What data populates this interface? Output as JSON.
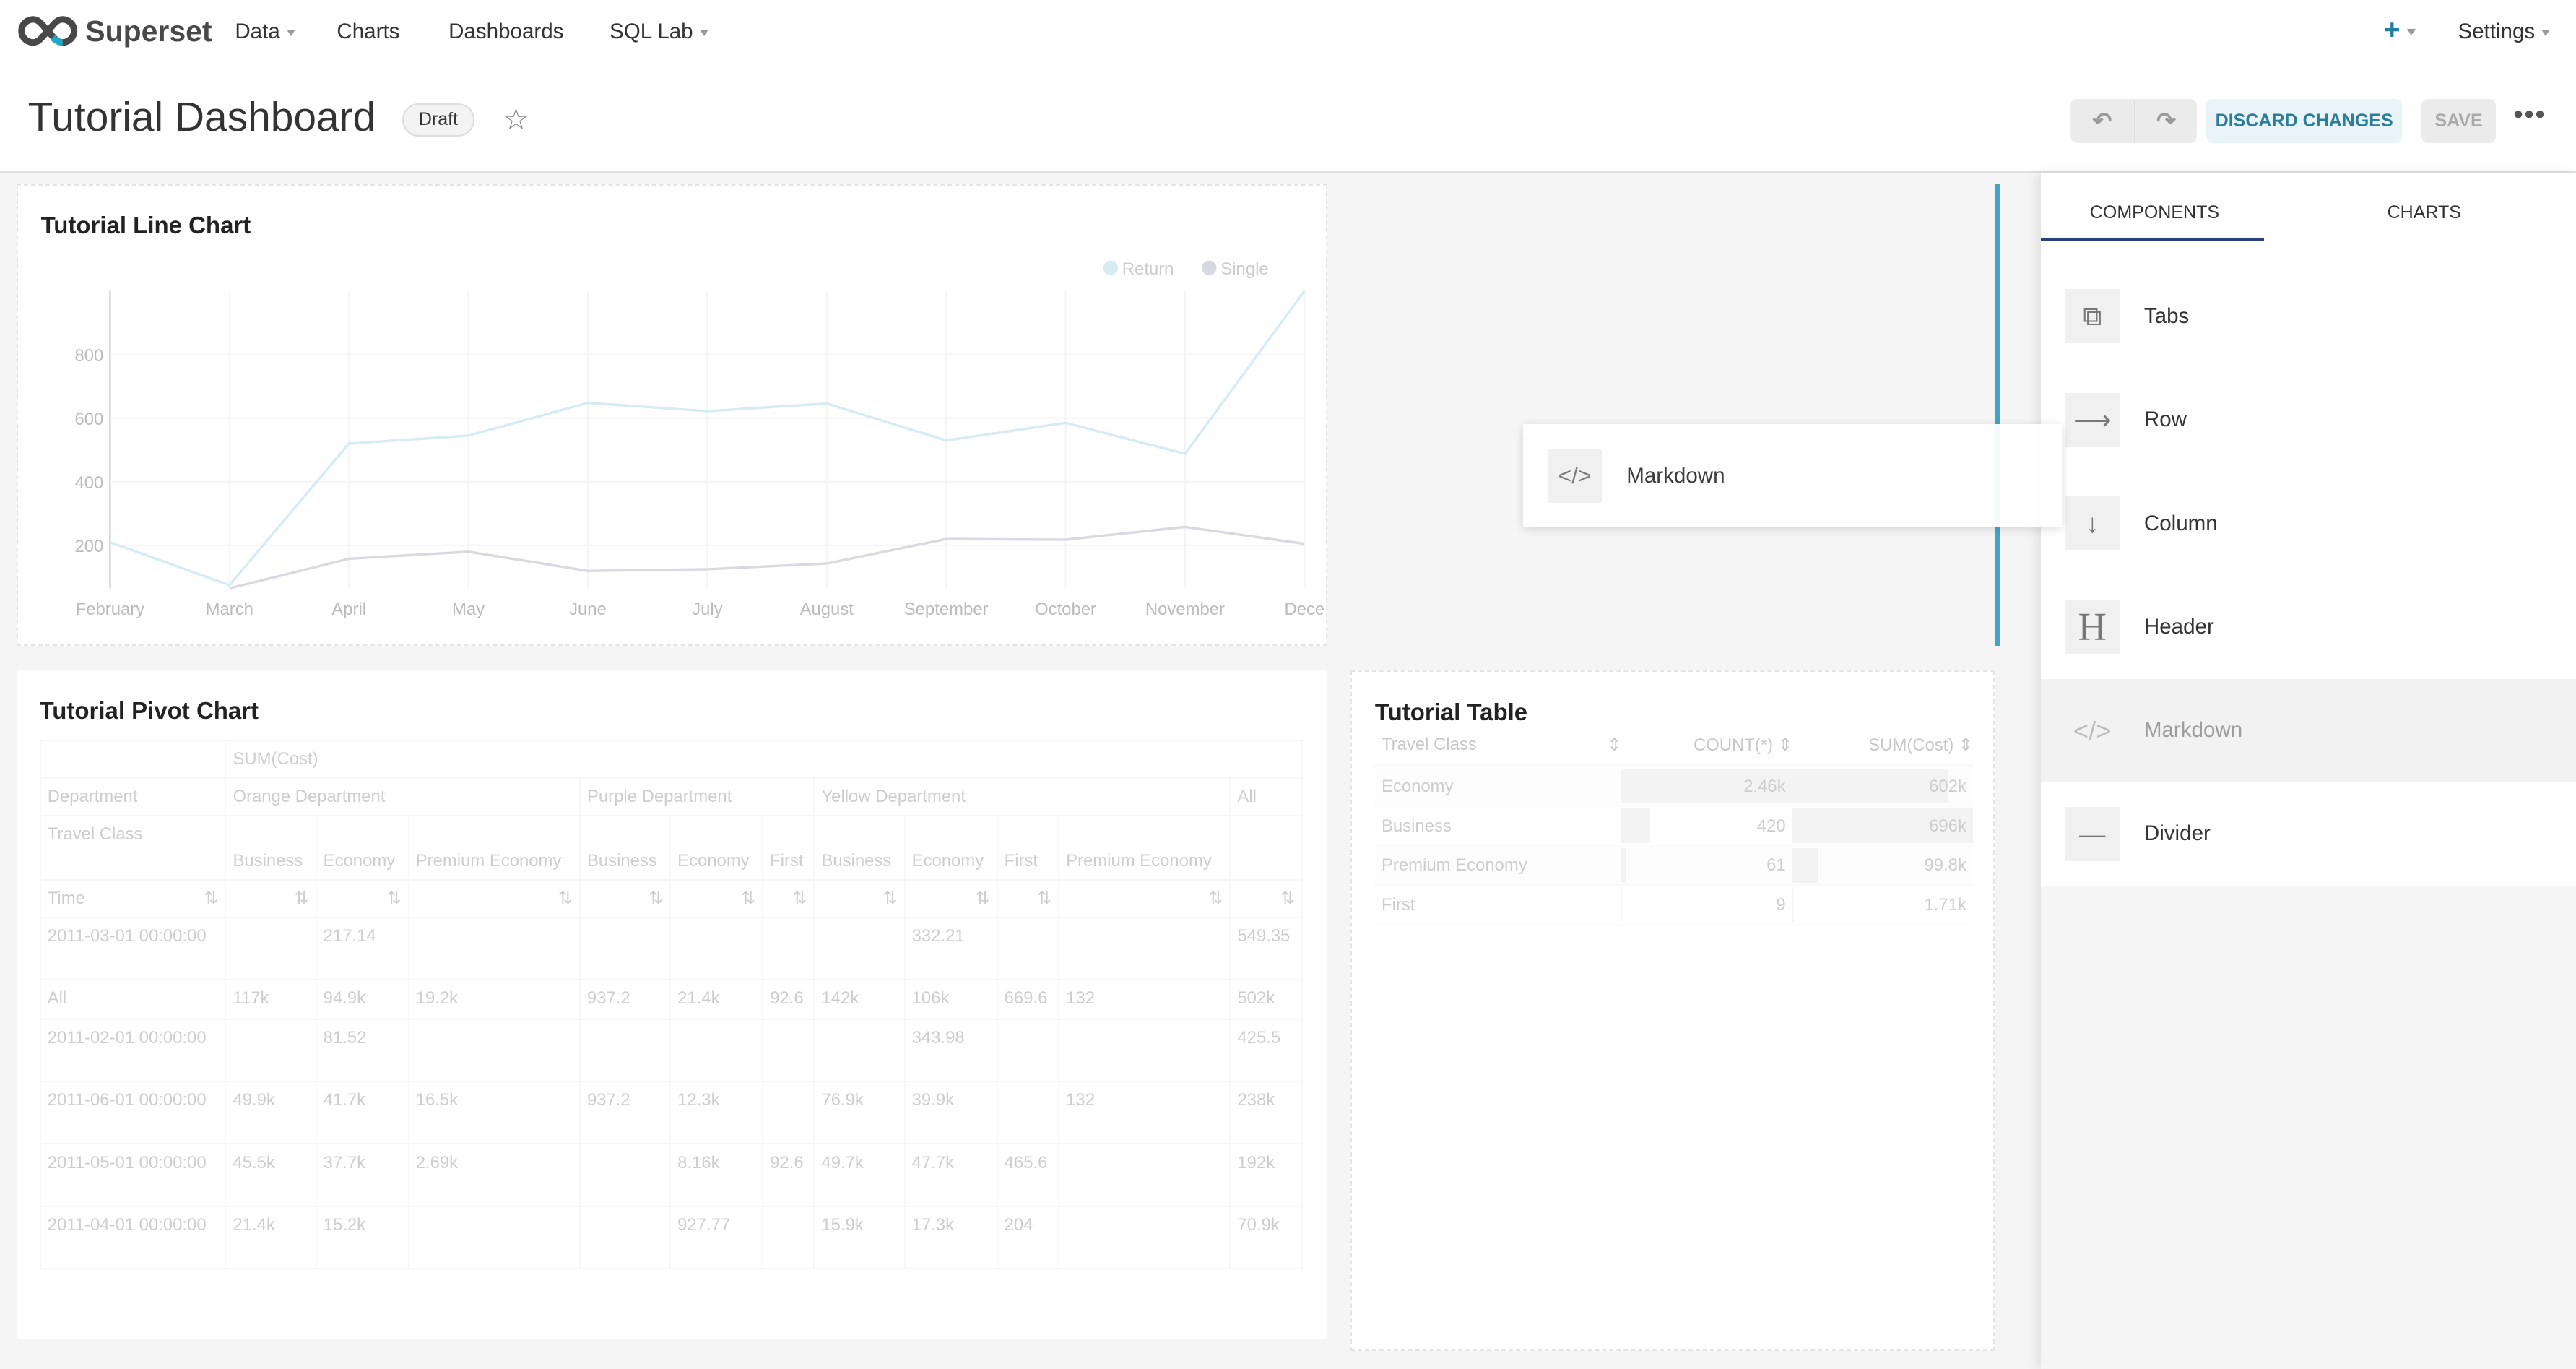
{
  "nav": {
    "brand": "Superset",
    "items": [
      {
        "label": "Data",
        "dropdown": true
      },
      {
        "label": "Charts"
      },
      {
        "label": "Dashboards"
      },
      {
        "label": "SQL Lab",
        "dropdown": true
      }
    ],
    "settings": "Settings",
    "accent": "#20a7c9"
  },
  "header": {
    "title": "Tutorial Dashboard",
    "badge": "Draft",
    "discard": "DISCARD CHANGES",
    "save": "SAVE"
  },
  "line_chart": {
    "title": "Tutorial Line Chart"
  },
  "chart_data": [
    {
      "type": "line",
      "title": "Tutorial Line Chart",
      "legend_position": "top-right",
      "grid": true,
      "categories": [
        "February",
        "March",
        "April",
        "May",
        "June",
        "July",
        "August",
        "September",
        "October",
        "November",
        "December"
      ],
      "x_tick_labels": [
        "February",
        "March",
        "April",
        "May",
        "June",
        "July",
        "August",
        "September",
        "October",
        "November",
        "Dece"
      ],
      "ylim": [
        65,
        1000
      ],
      "yticks": [
        "200",
        "400",
        "600",
        "800"
      ],
      "series": [
        {
          "name": "Return",
          "color": "#d6ebf2",
          "values": [
            210,
            75,
            520,
            545,
            648,
            622,
            646,
            530,
            585,
            488,
            1000
          ]
        },
        {
          "name": "Single",
          "color": "#d9dae1",
          "values": [
            null,
            65,
            158,
            180,
            120,
            125,
            143,
            220,
            218,
            258,
            205
          ]
        }
      ]
    }
  ],
  "pivot": {
    "title": "Tutorial Pivot Chart",
    "metric": "SUM(Cost)",
    "department_label": "Department",
    "departments": [
      {
        "name": "Orange Department",
        "span": 3
      },
      {
        "name": "Purple Department",
        "span": 3
      },
      {
        "name": "Yellow Department",
        "span": 4
      },
      {
        "name": "All",
        "span": 1
      }
    ],
    "class_label": "Travel Class",
    "classes": [
      "Business",
      "Economy",
      "Premium Economy",
      "Business",
      "Economy",
      "First",
      "Business",
      "Economy",
      "First",
      "Premium Economy",
      ""
    ],
    "time_label": "Time",
    "rows": [
      [
        "2011-03-01 00:00:00",
        "",
        "217.14",
        "",
        "",
        "",
        "",
        "",
        "332.21",
        "",
        "",
        "549.35"
      ],
      [
        "All",
        "117k",
        "94.9k",
        "19.2k",
        "937.2",
        "21.4k",
        "92.6",
        "142k",
        "106k",
        "669.6",
        "132",
        "502k"
      ],
      [
        "2011-02-01 00:00:00",
        "",
        "81.52",
        "",
        "",
        "",
        "",
        "",
        "343.98",
        "",
        "",
        "425.5"
      ],
      [
        "2011-06-01 00:00:00",
        "49.9k",
        "41.7k",
        "16.5k",
        "937.2",
        "12.3k",
        "",
        "76.9k",
        "39.9k",
        "",
        "132",
        "238k"
      ],
      [
        "2011-05-01 00:00:00",
        "45.5k",
        "37.7k",
        "2.69k",
        "",
        "8.16k",
        "92.6",
        "49.7k",
        "47.7k",
        "465.6",
        "",
        "192k"
      ],
      [
        "2011-04-01 00:00:00",
        "21.4k",
        "15.2k",
        "",
        "",
        "927.77",
        "",
        "15.9k",
        "17.3k",
        "204",
        "",
        "70.9k"
      ]
    ]
  },
  "table": {
    "title": "Tutorial Table",
    "columns": [
      "Travel Class",
      "COUNT(*)",
      "SUM(Cost)"
    ],
    "rows": [
      {
        "cls": "Economy",
        "count": "2.46k",
        "sum": "602k",
        "count_frac": 1,
        "sum_frac": 0.865
      },
      {
        "cls": "Business",
        "count": "420",
        "sum": "696k",
        "count_frac": 0.17,
        "sum_frac": 1
      },
      {
        "cls": "Premium Economy",
        "count": "61",
        "sum": "99.8k",
        "count_frac": 0.025,
        "sum_frac": 0.143
      },
      {
        "cls": "First",
        "count": "9",
        "sum": "1.71k",
        "count_frac": 0.004,
        "sum_frac": 0.002
      }
    ]
  },
  "side": {
    "tabs": [
      "COMPONENTS",
      "CHARTS"
    ],
    "items": [
      {
        "label": "Tabs",
        "icon": "tabs-icon"
      },
      {
        "label": "Row",
        "icon": "arrow-right-icon"
      },
      {
        "label": "Column",
        "icon": "arrow-down-icon"
      },
      {
        "label": "Header",
        "icon": "header-icon"
      },
      {
        "label": "Markdown",
        "icon": "code-icon"
      },
      {
        "label": "Divider",
        "icon": "divider-icon"
      }
    ]
  },
  "drag": {
    "label": "Markdown"
  }
}
